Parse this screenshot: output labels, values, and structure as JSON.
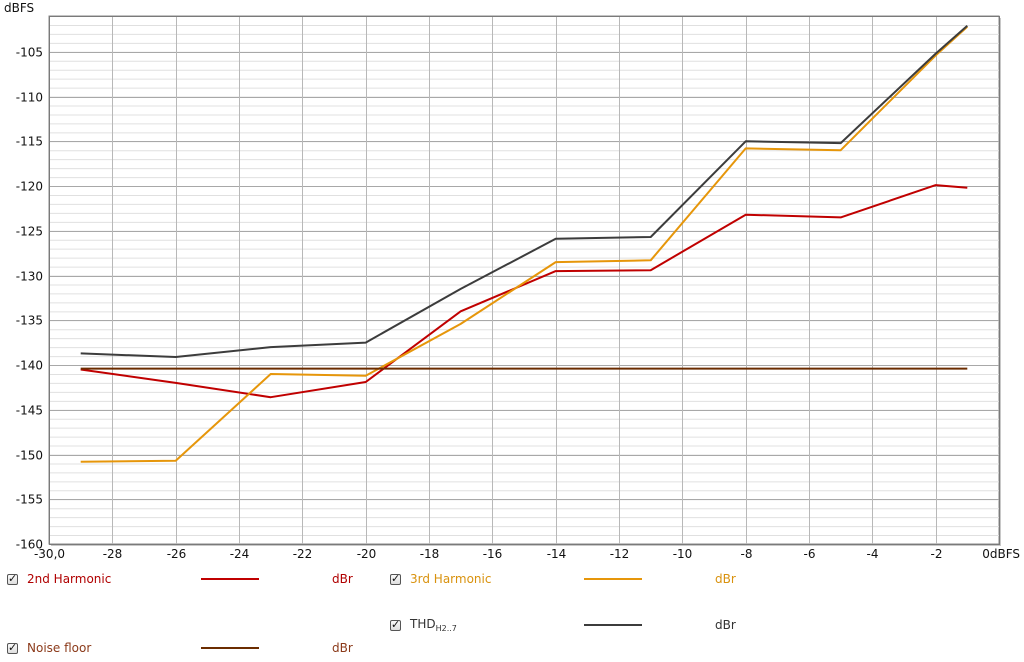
{
  "chart_data": {
    "type": "line",
    "x_axis": {
      "unit": "dBFS",
      "range": [
        -30,
        0
      ],
      "ticks": [
        "-30,0",
        "-28",
        "-26",
        "-24",
        "-22",
        "-20",
        "-18",
        "-16",
        "-14",
        "-12",
        "-10",
        "-8",
        "-6",
        "-4",
        "-2",
        "0dBFS"
      ],
      "tick_values": [
        -30,
        -28,
        -26,
        -24,
        -22,
        -20,
        -18,
        -16,
        -14,
        -12,
        -10,
        -8,
        -6,
        -4,
        -2,
        0
      ]
    },
    "y_axis": {
      "unit": "dBFS",
      "range": [
        -160,
        -101
      ],
      "ticks": [
        -105,
        -110,
        -115,
        -120,
        -125,
        -130,
        -135,
        -140,
        -145,
        -150,
        -155,
        -160
      ],
      "grid_minor_step": 1
    },
    "grid": true,
    "series": [
      {
        "name": "2nd Harmonic",
        "color": "#c00000",
        "x": [
          -29,
          -26,
          -23,
          -20,
          -17,
          -14,
          -11,
          -8,
          -5,
          -2,
          -1
        ],
        "y": [
          -140.5,
          -142.0,
          -143.6,
          -141.9,
          -134.0,
          -129.5,
          -129.4,
          -123.2,
          -123.5,
          -119.9,
          -120.2
        ]
      },
      {
        "name": "3rd Harmonic",
        "color": "#e6960a",
        "x": [
          -29,
          -26,
          -23,
          -20,
          -17,
          -14,
          -11,
          -8,
          -5,
          -2,
          -1
        ],
        "y": [
          -150.8,
          -150.7,
          -141.0,
          -141.2,
          -135.4,
          -128.5,
          -128.3,
          -115.8,
          -116.0,
          -105.4,
          -102.2
        ]
      },
      {
        "name": "THD",
        "color": "#3c3c3c",
        "x": [
          -29,
          -26,
          -23,
          -20,
          -17,
          -14,
          -11,
          -8,
          -5,
          -2,
          -1
        ],
        "y": [
          -138.7,
          -139.1,
          -138.0,
          -137.5,
          -131.5,
          -125.9,
          -125.7,
          -115.0,
          -115.2,
          -105.2,
          -102.1
        ]
      },
      {
        "name": "Noise floor",
        "color": "#6b2c00",
        "x": [
          -29,
          -1
        ],
        "y": [
          -140.4,
          -140.4
        ]
      }
    ]
  },
  "legend": [
    {
      "label": "2nd Harmonic",
      "unit": "dBr",
      "color": "#c00000",
      "label_color": "#b00000",
      "checked": true
    },
    {
      "label": "3rd Harmonic",
      "unit": "dBr",
      "color": "#e6960a",
      "label_color": "#d9920e",
      "checked": true
    },
    {
      "label": "THD",
      "sub": "H2..7",
      "unit": "dBr",
      "color": "#3c3c3c",
      "label_color": "#333333",
      "checked": true
    },
    {
      "label": "Noise floor",
      "unit": "dBr",
      "color": "#6b2c00",
      "label_color": "#8b3a1a",
      "checked": true
    }
  ]
}
